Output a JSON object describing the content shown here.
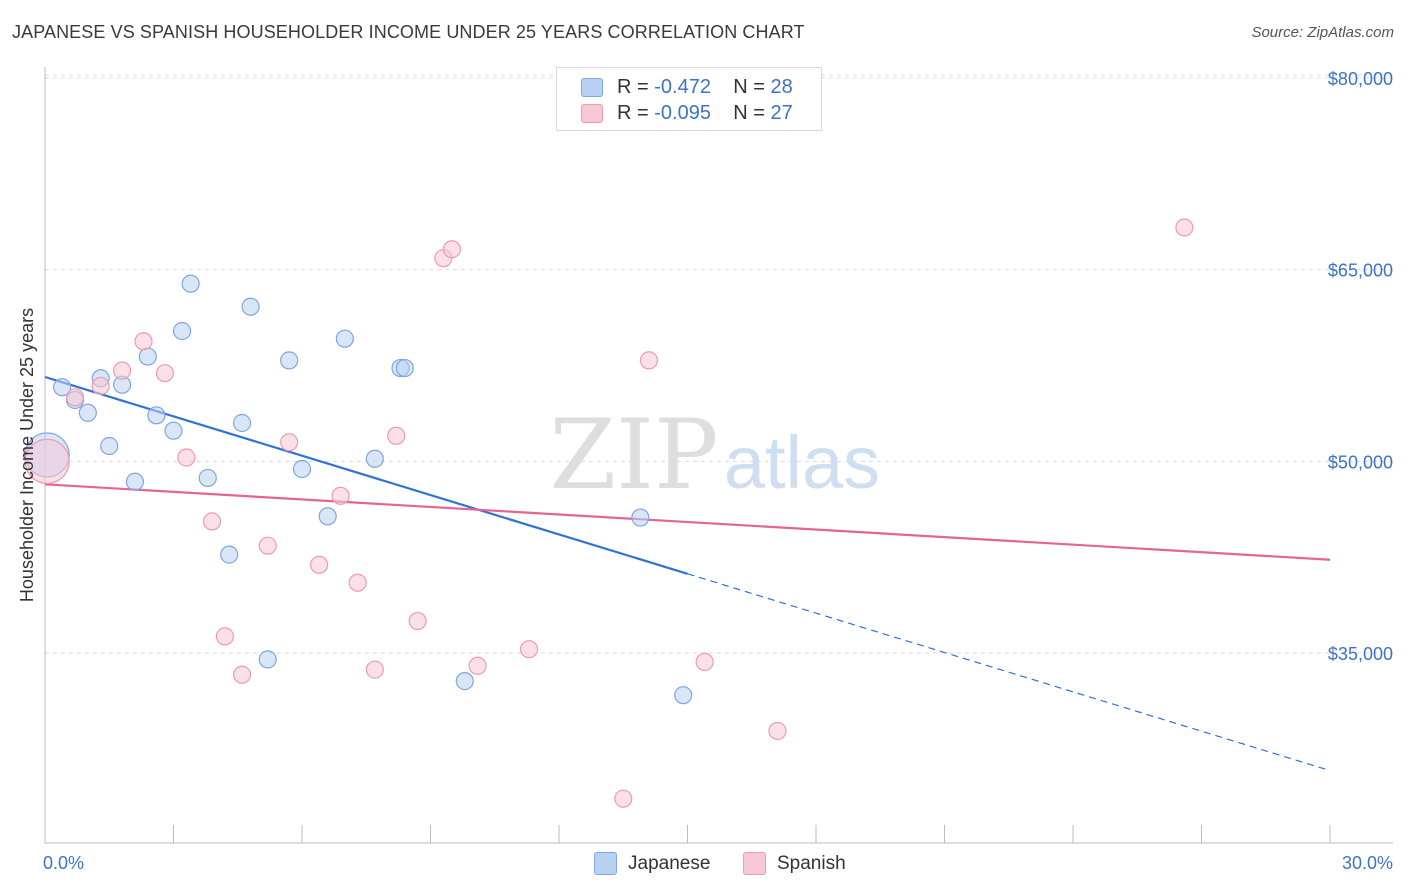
{
  "header": {
    "title": "JAPANESE VS SPANISH HOUSEHOLDER INCOME UNDER 25 YEARS CORRELATION CHART",
    "source": "Source: ZipAtlas.com"
  },
  "watermark": {
    "zip": "ZIP",
    "atlas": "atlas"
  },
  "legend_top": {
    "rows": [
      {
        "r_label": "R =",
        "r_value": "-0.472",
        "n_label": "N =",
        "n_value": "28"
      },
      {
        "r_label": "R =",
        "r_value": "-0.095",
        "n_label": "N =",
        "n_value": "27"
      }
    ]
  },
  "legend_bottom": {
    "items": [
      {
        "label": "Japanese"
      },
      {
        "label": "Spanish"
      }
    ]
  },
  "colors": {
    "japanese_fill": "#b8d1f3",
    "japanese_stroke": "#7fa6df",
    "japanese_line": "#2f73d6",
    "spanish_fill": "#f7c7d5",
    "spanish_stroke": "#ee9ab3",
    "spanish_line": "#e2668f",
    "tick_text": "#3b73c9",
    "grid": "#d9d9d9"
  },
  "chart_data": {
    "type": "scatter",
    "title": "JAPANESE VS SPANISH HOUSEHOLDER INCOME UNDER 25 YEARS CORRELATION CHART",
    "xlabel": "",
    "ylabel": "Householder Income Under 25 years",
    "xlim": [
      0,
      30
    ],
    "ylim": [
      20000,
      82000
    ],
    "x_tick_labels": [
      "0.0%",
      "30.0%"
    ],
    "y_ticks": [
      35000,
      50000,
      65000,
      80000
    ],
    "y_tick_labels": [
      "$35,000",
      "$50,000",
      "$65,000",
      "$80,000"
    ],
    "grid": true,
    "legend_position": "top-center",
    "series": [
      {
        "name": "Japanese",
        "r": -0.472,
        "n": 28,
        "points": [
          {
            "x": 0.05,
            "y": 50500,
            "big": true
          },
          {
            "x": 0.4,
            "y": 55800
          },
          {
            "x": 0.7,
            "y": 54800
          },
          {
            "x": 1.0,
            "y": 53800
          },
          {
            "x": 1.3,
            "y": 56500
          },
          {
            "x": 1.5,
            "y": 51200
          },
          {
            "x": 1.8,
            "y": 56000
          },
          {
            "x": 2.1,
            "y": 48400
          },
          {
            "x": 2.4,
            "y": 58200
          },
          {
            "x": 2.6,
            "y": 53600
          },
          {
            "x": 3.0,
            "y": 52400
          },
          {
            "x": 3.2,
            "y": 60200
          },
          {
            "x": 3.4,
            "y": 63900
          },
          {
            "x": 3.8,
            "y": 48700
          },
          {
            "x": 4.3,
            "y": 42700
          },
          {
            "x": 4.6,
            "y": 53000
          },
          {
            "x": 4.8,
            "y": 62100
          },
          {
            "x": 5.2,
            "y": 34500
          },
          {
            "x": 5.7,
            "y": 57900
          },
          {
            "x": 6.0,
            "y": 49400
          },
          {
            "x": 6.6,
            "y": 45700
          },
          {
            "x": 7.0,
            "y": 59600
          },
          {
            "x": 7.7,
            "y": 50200
          },
          {
            "x": 8.3,
            "y": 57300
          },
          {
            "x": 8.4,
            "y": 57300
          },
          {
            "x": 9.8,
            "y": 32800
          },
          {
            "x": 13.9,
            "y": 45600
          },
          {
            "x": 14.9,
            "y": 31700
          }
        ],
        "trend": {
          "x0": 0,
          "y0": 56600,
          "x_solid_end": 15.0,
          "x1": 30,
          "y1": 25800
        }
      },
      {
        "name": "Spanish",
        "r": -0.095,
        "n": 27,
        "points": [
          {
            "x": 0.05,
            "y": 50000,
            "big": true
          },
          {
            "x": 0.7,
            "y": 55000
          },
          {
            "x": 1.3,
            "y": 55900
          },
          {
            "x": 1.8,
            "y": 57100
          },
          {
            "x": 2.3,
            "y": 59400
          },
          {
            "x": 2.8,
            "y": 56900
          },
          {
            "x": 3.3,
            "y": 50300
          },
          {
            "x": 3.9,
            "y": 45300
          },
          {
            "x": 4.2,
            "y": 36300
          },
          {
            "x": 4.6,
            "y": 33300
          },
          {
            "x": 5.2,
            "y": 43400
          },
          {
            "x": 5.7,
            "y": 51500
          },
          {
            "x": 6.4,
            "y": 41900
          },
          {
            "x": 6.9,
            "y": 47300
          },
          {
            "x": 7.3,
            "y": 40500
          },
          {
            "x": 7.7,
            "y": 33700
          },
          {
            "x": 8.2,
            "y": 52000
          },
          {
            "x": 8.7,
            "y": 37500
          },
          {
            "x": 9.3,
            "y": 65900
          },
          {
            "x": 9.5,
            "y": 66600
          },
          {
            "x": 10.1,
            "y": 34000
          },
          {
            "x": 11.3,
            "y": 35300
          },
          {
            "x": 13.5,
            "y": 23600
          },
          {
            "x": 14.1,
            "y": 57900
          },
          {
            "x": 15.4,
            "y": 34300
          },
          {
            "x": 17.1,
            "y": 28900
          },
          {
            "x": 26.6,
            "y": 68300
          }
        ],
        "trend": {
          "x0": 0,
          "y0": 48200,
          "x1": 30,
          "y1": 42300
        }
      }
    ]
  }
}
